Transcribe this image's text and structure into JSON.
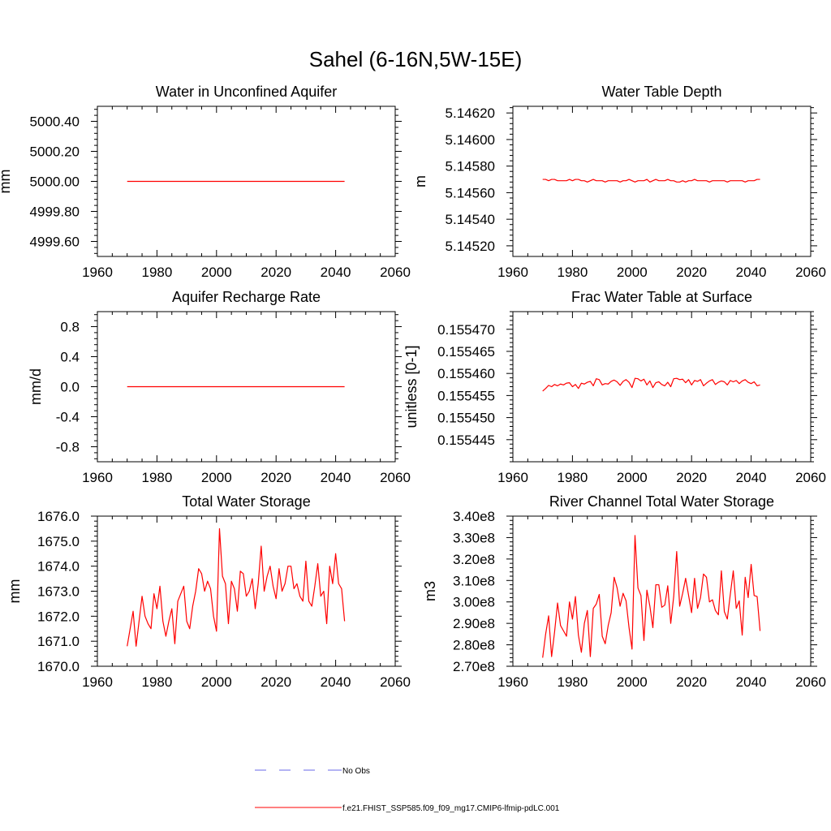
{
  "title": "Sahel (6-16N,5W-15E)",
  "legend": {
    "placement": "bottom-center",
    "obs_label": "No Obs",
    "obs_color": "#6a6ae8",
    "model_label": "f.e21.FHIST_SSP585.f09_f09_mg17.CMIP6-lfmip-pdLC.001",
    "model_color": "#ff0000"
  },
  "chart_data": [
    {
      "type": "line",
      "title": "Water in Unconfined Aquifer",
      "xlabel": "",
      "ylabel": "mm",
      "xlim": [
        1960,
        2060
      ],
      "ylim": [
        4999.5,
        5000.5
      ],
      "xticks": [
        1960,
        1980,
        2000,
        2020,
        2040,
        2060
      ],
      "yticks": [
        4999.6,
        4999.8,
        5000.0,
        5000.2,
        5000.4
      ],
      "ytick_labels": [
        "4999.60",
        "4999.80",
        "5000.00",
        "5000.20",
        "5000.40"
      ],
      "x_start": 1970,
      "series": [
        {
          "name": "f.e21.FHIST_SSP585.f09_f09_mg17.CMIP6-lfmip-pdLC.001",
          "values": [
            5000,
            5000,
            5000,
            5000,
            5000,
            5000,
            5000,
            5000,
            5000,
            5000,
            5000,
            5000,
            5000,
            5000,
            5000,
            5000,
            5000,
            5000,
            5000,
            5000,
            5000,
            5000,
            5000,
            5000,
            5000,
            5000,
            5000,
            5000,
            5000,
            5000,
            5000,
            5000,
            5000,
            5000,
            5000,
            5000,
            5000,
            5000,
            5000,
            5000,
            5000,
            5000,
            5000,
            5000,
            5000,
            5000,
            5000,
            5000,
            5000,
            5000,
            5000,
            5000,
            5000,
            5000,
            5000,
            5000,
            5000,
            5000,
            5000,
            5000,
            5000,
            5000,
            5000,
            5000,
            5000,
            5000,
            5000,
            5000,
            5000,
            5000,
            5000,
            5000,
            5000,
            5000
          ]
        }
      ]
    },
    {
      "type": "line",
      "title": "Water Table Depth",
      "xlabel": "",
      "ylabel": "m",
      "xlim": [
        1960,
        2060
      ],
      "ylim": [
        5.14512,
        5.14625
      ],
      "xticks": [
        1960,
        1980,
        2000,
        2020,
        2040,
        2060
      ],
      "yticks": [
        5.1452,
        5.1454,
        5.1456,
        5.1458,
        5.146,
        5.1462
      ],
      "ytick_labels": [
        "5.14520",
        "5.14540",
        "5.14560",
        "5.14580",
        "5.14600",
        "5.14620"
      ],
      "x_start": 1970,
      "series": [
        {
          "name": "f.e21.FHIST_SSP585.f09_f09_mg17.CMIP6-lfmip-pdLC.001",
          "values": [
            5.1457,
            5.1457,
            5.14569,
            5.1457,
            5.1457,
            5.14569,
            5.14569,
            5.14569,
            5.14569,
            5.1457,
            5.14569,
            5.1457,
            5.1457,
            5.14569,
            5.14569,
            5.14568,
            5.14569,
            5.1457,
            5.14569,
            5.14569,
            5.14569,
            5.14568,
            5.14569,
            5.14569,
            5.14569,
            5.14569,
            5.14568,
            5.14569,
            5.14569,
            5.1457,
            5.14569,
            5.14568,
            5.14569,
            5.14569,
            5.14569,
            5.1457,
            5.14568,
            5.14569,
            5.1457,
            5.14569,
            5.14569,
            5.14569,
            5.1457,
            5.14569,
            5.14569,
            5.14568,
            5.14568,
            5.14569,
            5.14568,
            5.14569,
            5.14569,
            5.1457,
            5.14569,
            5.14569,
            5.14569,
            5.14569,
            5.14568,
            5.14569,
            5.14569,
            5.14569,
            5.14569,
            5.14569,
            5.14568,
            5.14569,
            5.14569,
            5.14569,
            5.14569,
            5.14569,
            5.14568,
            5.14569,
            5.14569,
            5.14569,
            5.1457,
            5.1457
          ]
        }
      ]
    },
    {
      "type": "line",
      "title": "Aquifer Recharge Rate",
      "xlabel": "",
      "ylabel": "mm/d",
      "xlim": [
        1960,
        2060
      ],
      "ylim": [
        -1.0,
        1.0
      ],
      "xticks": [
        1960,
        1980,
        2000,
        2020,
        2040,
        2060
      ],
      "yticks": [
        -0.8,
        -0.4,
        0.0,
        0.4,
        0.8
      ],
      "ytick_labels": [
        "-0.8",
        "-0.4",
        "0.0",
        "0.4",
        "0.8"
      ],
      "x_start": 1970,
      "series": [
        {
          "name": "f.e21.FHIST_SSP585.f09_f09_mg17.CMIP6-lfmip-pdLC.001",
          "values": [
            0,
            0,
            0,
            0,
            0,
            0,
            0,
            0,
            0,
            0,
            0,
            0,
            0,
            0,
            0,
            0,
            0,
            0,
            0,
            0,
            0,
            0,
            0,
            0,
            0,
            0,
            0,
            0,
            0,
            0,
            0,
            0,
            0,
            0,
            0,
            0,
            0,
            0,
            0,
            0,
            0,
            0,
            0,
            0,
            0,
            0,
            0,
            0,
            0,
            0,
            0,
            0,
            0,
            0,
            0,
            0,
            0,
            0,
            0,
            0,
            0,
            0,
            0,
            0,
            0,
            0,
            0,
            0,
            0,
            0,
            0,
            0,
            0,
            0
          ]
        }
      ]
    },
    {
      "type": "line",
      "title": "Frac Water Table at Surface",
      "xlabel": "",
      "ylabel": "unitless [0-1]",
      "xlim": [
        1960,
        2060
      ],
      "ylim": [
        0.15544,
        0.155474
      ],
      "xticks": [
        1960,
        1980,
        2000,
        2020,
        2040,
        2060
      ],
      "yticks": [
        0.155445,
        0.15545,
        0.155455,
        0.15546,
        0.155465,
        0.15547
      ],
      "ytick_labels": [
        "0.155445",
        "0.155450",
        "0.155455",
        "0.155460",
        "0.155465",
        "0.155470"
      ],
      "x_start": 1970,
      "series": [
        {
          "name": "f.e21.FHIST_SSP585.f09_f09_mg17.CMIP6-lfmip-pdLC.001",
          "values": [
            0.155456,
            0.1554566,
            0.1554573,
            0.155457,
            0.1554575,
            0.1554572,
            0.1554576,
            0.1554574,
            0.1554578,
            0.1554579,
            0.155457,
            0.1554575,
            0.1554566,
            0.1554578,
            0.1554576,
            0.155458,
            0.1554582,
            0.1554572,
            0.1554588,
            0.1554586,
            0.1554574,
            0.1554577,
            0.1554576,
            0.1554582,
            0.1554585,
            0.1554581,
            0.1554573,
            0.1554582,
            0.1554586,
            0.155458,
            0.1554568,
            0.1554589,
            0.1554588,
            0.1554583,
            0.1554587,
            0.1554574,
            0.1554583,
            0.1554568,
            0.1554579,
            0.1554581,
            0.1554575,
            0.1554572,
            0.155458,
            0.155457,
            0.1554588,
            0.1554589,
            0.1554586,
            0.1554587,
            0.1554579,
            0.1554586,
            0.1554574,
            0.1554584,
            0.1554582,
            0.1554586,
            0.1554572,
            0.1554578,
            0.1554583,
            0.1554586,
            0.1554575,
            0.155458,
            0.1554583,
            0.1554581,
            0.1554574,
            0.1554584,
            0.1554581,
            0.1554584,
            0.1554577,
            0.1554583,
            0.1554586,
            0.155458,
            0.1554577,
            0.1554581,
            0.1554572,
            0.1554574
          ]
        }
      ]
    },
    {
      "type": "line",
      "title": "Total Water Storage",
      "xlabel": "",
      "ylabel": "mm",
      "xlim": [
        1960,
        2060
      ],
      "ylim": [
        1670.0,
        1676.0
      ],
      "xticks": [
        1960,
        1980,
        2000,
        2020,
        2040,
        2060
      ],
      "yticks": [
        1670,
        1671,
        1672,
        1673,
        1674,
        1675,
        1676
      ],
      "ytick_labels": [
        "1670.0",
        "1671.0",
        "1672.0",
        "1673.0",
        "1674.0",
        "1675.0",
        "1676.0"
      ],
      "x_start": 1970,
      "series": [
        {
          "name": "f.e21.FHIST_SSP585.f09_f09_mg17.CMIP6-lfmip-pdLC.001",
          "values": [
            1670.8,
            1671.5,
            1672.2,
            1670.8,
            1671.8,
            1672.8,
            1672.0,
            1671.7,
            1671.5,
            1672.9,
            1672.3,
            1673.2,
            1671.8,
            1671.2,
            1671.8,
            1672.3,
            1670.9,
            1672.6,
            1672.9,
            1673.2,
            1671.8,
            1671.5,
            1672.4,
            1673.0,
            1673.9,
            1673.7,
            1673.0,
            1673.4,
            1673.1,
            1672.0,
            1671.4,
            1675.5,
            1673.6,
            1673.3,
            1671.7,
            1673.4,
            1673.1,
            1672.2,
            1673.8,
            1673.7,
            1672.8,
            1673.0,
            1673.5,
            1672.3,
            1673.3,
            1674.8,
            1673.0,
            1673.6,
            1674.0,
            1673.2,
            1672.7,
            1673.9,
            1673.0,
            1673.3,
            1674.0,
            1674.0,
            1673.1,
            1673.3,
            1672.8,
            1672.6,
            1674.2,
            1672.6,
            1672.4,
            1673.2,
            1674.1,
            1672.8,
            1673.0,
            1671.7,
            1674.0,
            1673.3,
            1674.5,
            1673.3,
            1673.1,
            1671.8
          ]
        }
      ]
    },
    {
      "type": "line",
      "title": "River Channel Total Water Storage",
      "xlabel": "",
      "ylabel": "m3",
      "xlim": [
        1960,
        2060
      ],
      "ylim": [
        270000000,
        340000000
      ],
      "xticks": [
        1960,
        1980,
        2000,
        2020,
        2040,
        2060
      ],
      "yticks": [
        270000000,
        280000000,
        290000000,
        300000000,
        310000000,
        320000000,
        330000000,
        340000000
      ],
      "ytick_labels": [
        "2.70e8",
        "2.80e8",
        "2.90e8",
        "3.00e8",
        "3.10e8",
        "3.20e8",
        "3.30e8",
        "3.40e8"
      ],
      "x_start": 1970,
      "series": [
        {
          "name": "f.e21.FHIST_SSP585.f09_f09_mg17.CMIP6-lfmip-pdLC.001",
          "values": [
            274000000,
            285000000,
            293500000,
            274500000,
            286000000,
            299500000,
            289000000,
            286500000,
            284000000,
            300000000,
            292000000,
            302500000,
            284500000,
            276500000,
            290000000,
            296000000,
            274500000,
            297000000,
            299000000,
            303500000,
            284000000,
            280500000,
            289000000,
            295000000,
            311500000,
            306500000,
            298000000,
            304000000,
            300500000,
            288000000,
            278000000,
            331000000,
            306500000,
            303000000,
            282000000,
            305500000,
            298000000,
            288000000,
            308000000,
            308000000,
            297500000,
            298500000,
            307500000,
            290000000,
            302500000,
            323500000,
            298000000,
            304000000,
            311000000,
            303000000,
            295000000,
            311000000,
            297000000,
            302000000,
            313000000,
            311500000,
            300000000,
            301000000,
            296000000,
            294000000,
            314500000,
            295500000,
            292000000,
            303500000,
            314500000,
            297000000,
            300500000,
            284500000,
            311500000,
            302000000,
            317500000,
            303000000,
            302500000,
            286500000
          ]
        }
      ]
    }
  ]
}
